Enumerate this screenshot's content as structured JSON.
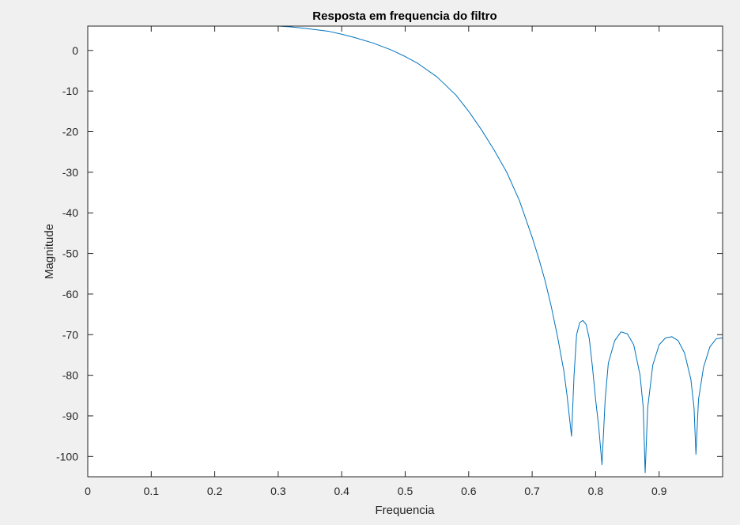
{
  "window": {
    "background": "#f0f0f0"
  },
  "chart_data": {
    "type": "line",
    "title": "Resposta em frequencia do filtro",
    "xlabel": "Frequencia",
    "ylabel": "Magnitude",
    "xlim": [
      0,
      1
    ],
    "ylim": [
      -105,
      6
    ],
    "xticks": [
      0,
      0.1,
      0.2,
      0.3,
      0.4,
      0.5,
      0.6,
      0.7,
      0.8,
      0.9
    ],
    "xtick_labels": [
      "0",
      "0.1",
      "0.2",
      "0.3",
      "0.4",
      "0.5",
      "0.6",
      "0.7",
      "0.8",
      "0.9"
    ],
    "yticks": [
      0,
      -10,
      -20,
      -30,
      -40,
      -50,
      -60,
      -70,
      -80,
      -90,
      -100
    ],
    "ytick_labels": [
      "0",
      "-10",
      "-20",
      "-30",
      "-40",
      "-50",
      "-60",
      "-70",
      "-80",
      "-90",
      "-100"
    ],
    "grid": false,
    "line_color": "#0072bd",
    "series": [
      {
        "name": "",
        "x": [
          0,
          0.05,
          0.1,
          0.15,
          0.2,
          0.25,
          0.3,
          0.32,
          0.35,
          0.38,
          0.4,
          0.42,
          0.45,
          0.48,
          0.5,
          0.52,
          0.55,
          0.58,
          0.6,
          0.62,
          0.64,
          0.66,
          0.68,
          0.7,
          0.71,
          0.72,
          0.73,
          0.74,
          0.75,
          0.755,
          0.762,
          0.766,
          0.77,
          0.775,
          0.78,
          0.785,
          0.79,
          0.795,
          0.8,
          0.805,
          0.81,
          0.815,
          0.82,
          0.83,
          0.84,
          0.85,
          0.86,
          0.87,
          0.875,
          0.878,
          0.882,
          0.89,
          0.9,
          0.91,
          0.92,
          0.93,
          0.94,
          0.95,
          0.955,
          0.958,
          0.962,
          0.97,
          0.98,
          0.99,
          1.0
        ],
        "y": [
          6,
          6,
          6,
          6,
          6,
          6,
          6,
          5.8,
          5.3,
          4.7,
          4.0,
          3.2,
          1.8,
          0.0,
          -1.5,
          -3.2,
          -6.5,
          -11,
          -15,
          -19.5,
          -24.5,
          -30,
          -37,
          -46,
          -51,
          -56.5,
          -63,
          -70.5,
          -79,
          -85,
          -95,
          -80,
          -70,
          -67,
          -66.5,
          -67.5,
          -71,
          -78,
          -86,
          -93,
          -102,
          -86,
          -77,
          -71.5,
          -69.3,
          -69.8,
          -72.5,
          -80,
          -88,
          -104,
          -88,
          -77.5,
          -72.5,
          -70.8,
          -70.5,
          -71.5,
          -74.5,
          -81,
          -88,
          -99.5,
          -86,
          -78,
          -73,
          -71,
          -70.8
        ]
      }
    ]
  }
}
